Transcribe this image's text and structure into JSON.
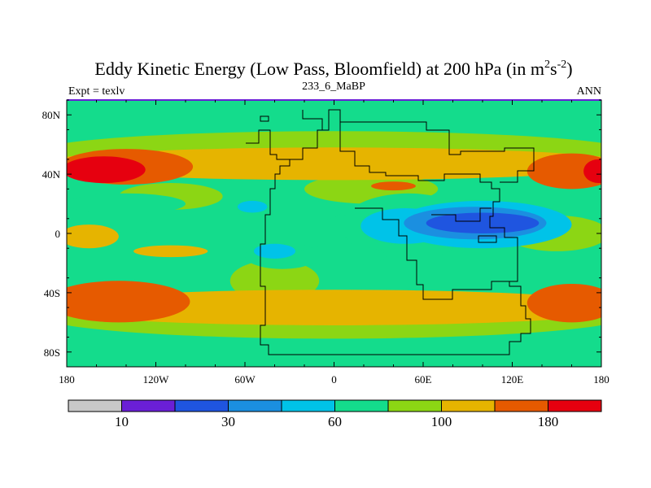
{
  "chart_data": {
    "type": "heatmap",
    "title": "Eddy Kinetic Energy (Low Pass, Bloomfield) at 200 hPa (in m",
    "title_unit_sup1": "2",
    "title_unit_mid": "s",
    "title_unit_sup2": "-2",
    "title_close": ")",
    "subtitle_left": "Expt = texlv",
    "subtitle_center": "233_6_MaBP",
    "subtitle_right": "ANN",
    "x_ticks": [
      {
        "value": -180,
        "label": "180"
      },
      {
        "value": -120,
        "label": "120W"
      },
      {
        "value": -60,
        "label": "60W"
      },
      {
        "value": 0,
        "label": "0"
      },
      {
        "value": 60,
        "label": "60E"
      },
      {
        "value": 120,
        "label": "120E"
      },
      {
        "value": 180,
        "label": "180"
      }
    ],
    "y_ticks": [
      {
        "value": 80,
        "label": "80N"
      },
      {
        "value": 40,
        "label": "40N"
      },
      {
        "value": 0,
        "label": "0"
      },
      {
        "value": -40,
        "label": "40S"
      },
      {
        "value": -80,
        "label": "80S"
      }
    ],
    "xlim": [
      -180,
      180
    ],
    "ylim": [
      -90,
      90
    ],
    "levels": [
      10,
      20,
      30,
      45,
      60,
      80,
      100,
      140,
      180
    ],
    "colorbar": {
      "colors": [
        "#c8c8c8",
        "#6a1fd6",
        "#1f55e0",
        "#1b8fe0",
        "#00c3e8",
        "#14dc8c",
        "#8cd614",
        "#e6b400",
        "#e65a00",
        "#e6000f"
      ],
      "labels": [
        {
          "boundary_index": 1,
          "label": "10"
        },
        {
          "boundary_index": 3,
          "label": "30"
        },
        {
          "boundary_index": 5,
          "label": "60"
        },
        {
          "boundary_index": 7,
          "label": "100"
        },
        {
          "boundary_index": 9,
          "label": "180"
        }
      ]
    },
    "background_level_index": 5,
    "regions": [
      {
        "level": 6,
        "cx": 0,
        "cy": 55,
        "rx": 200,
        "ry": 14
      },
      {
        "level": 6,
        "cx": 0,
        "cy": -55,
        "rx": 200,
        "ry": 16
      },
      {
        "level": 6,
        "cx": -110,
        "cy": 25,
        "rx": 35,
        "ry": 9
      },
      {
        "level": 6,
        "cx": 25,
        "cy": 30,
        "rx": 45,
        "ry": 10
      },
      {
        "level": 6,
        "cx": -40,
        "cy": -32,
        "rx": 30,
        "ry": 14
      },
      {
        "level": 6,
        "cx": 150,
        "cy": 0,
        "rx": 35,
        "ry": 12
      },
      {
        "level": 5,
        "cx": -140,
        "cy": 20,
        "rx": 40,
        "ry": 7
      },
      {
        "level": 7,
        "cx": 0,
        "cy": 47,
        "rx": 200,
        "ry": 11
      },
      {
        "level": 7,
        "cx": 0,
        "cy": -50,
        "rx": 200,
        "ry": 12
      },
      {
        "level": 7,
        "cx": -165,
        "cy": -2,
        "rx": 20,
        "ry": 8
      },
      {
        "level": 7,
        "cx": -110,
        "cy": -12,
        "rx": 25,
        "ry": 4
      },
      {
        "level": 8,
        "cx": -140,
        "cy": 45,
        "rx": 45,
        "ry": 12
      },
      {
        "level": 8,
        "cx": 160,
        "cy": 42,
        "rx": 30,
        "ry": 12
      },
      {
        "level": 8,
        "cx": -145,
        "cy": -46,
        "rx": 48,
        "ry": 14
      },
      {
        "level": 8,
        "cx": 160,
        "cy": -47,
        "rx": 30,
        "ry": 13
      },
      {
        "level": 8,
        "cx": 40,
        "cy": 32,
        "rx": 15,
        "ry": 3
      },
      {
        "level": 9,
        "cx": -155,
        "cy": 43,
        "rx": 28,
        "ry": 9
      },
      {
        "level": 9,
        "cx": 178,
        "cy": 42,
        "rx": 10,
        "ry": 8
      },
      {
        "level": 5,
        "cx": 50,
        "cy": 5,
        "rx": 45,
        "ry": 22
      },
      {
        "level": 5,
        "cx": -30,
        "cy": 15,
        "rx": 35,
        "ry": 8
      },
      {
        "level": 5,
        "cx": -35,
        "cy": -15,
        "rx": 25,
        "ry": 9
      },
      {
        "level": 5,
        "cx": 5,
        "cy": -15,
        "rx": 30,
        "ry": 7
      },
      {
        "level": 5,
        "cx": -135,
        "cy": 5,
        "rx": 15,
        "ry": 5
      },
      {
        "level": 4,
        "cx": 100,
        "cy": 6,
        "rx": 60,
        "ry": 16
      },
      {
        "level": 4,
        "cx": 48,
        "cy": 5,
        "rx": 30,
        "ry": 12
      },
      {
        "level": 4,
        "cx": -40,
        "cy": -12,
        "rx": 14,
        "ry": 5
      },
      {
        "level": 4,
        "cx": -55,
        "cy": 18,
        "rx": 10,
        "ry": 4
      },
      {
        "level": 3,
        "cx": 95,
        "cy": 7,
        "rx": 48,
        "ry": 11
      },
      {
        "level": 2,
        "cx": 100,
        "cy": 7,
        "rx": 38,
        "ry": 7
      },
      {
        "level": 8,
        "cx": 12,
        "cy": -45,
        "rx": 0,
        "ry": 0
      }
    ]
  },
  "map_outline_label": "land outline"
}
